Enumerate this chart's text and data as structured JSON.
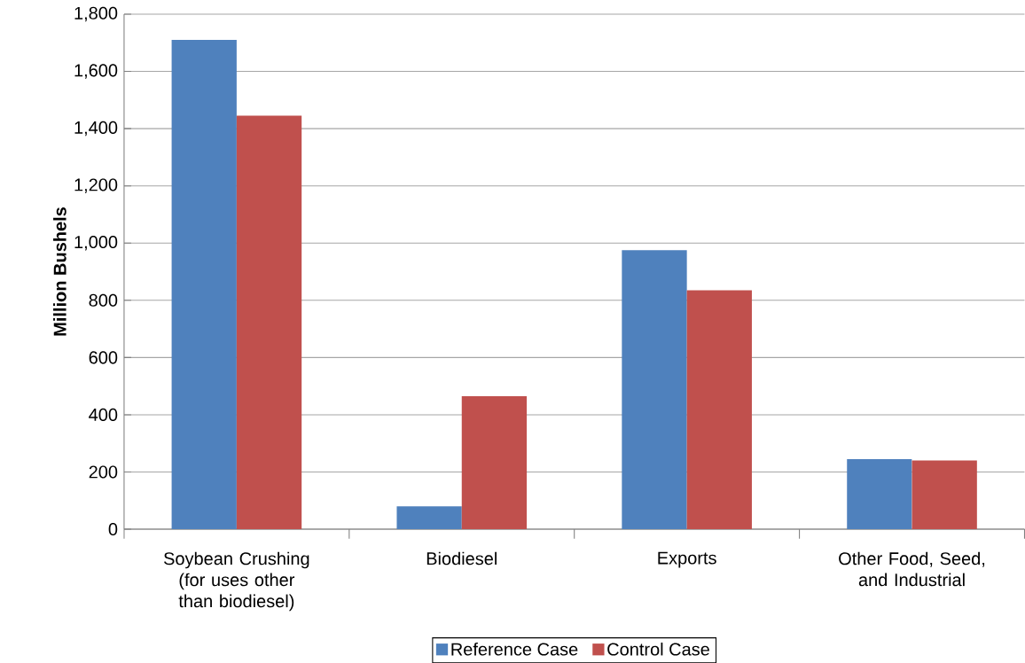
{
  "chart_data": {
    "type": "bar",
    "ylabel": "Million Bushels",
    "categories": [
      "Soybean Crushing (for uses other than biodiesel)",
      "Biodiesel",
      "Exports",
      "Other Food, Seed, and Industrial"
    ],
    "series": [
      {
        "name": "Reference Case",
        "color": "#4f81bd",
        "values": [
          1710,
          80,
          975,
          245
        ]
      },
      {
        "name": "Control Case",
        "color": "#c0504d",
        "values": [
          1445,
          465,
          835,
          240
        ]
      }
    ],
    "ylim": [
      0,
      1800
    ],
    "yticks": [
      0,
      200,
      400,
      600,
      800,
      {
        "value": 1000,
        "label": "1,000"
      },
      {
        "value": 1200,
        "label": "1,200"
      },
      {
        "value": 1400,
        "label": "1,400"
      },
      {
        "value": 1600,
        "label": "1,600"
      },
      {
        "value": 1800,
        "label": "1,800"
      }
    ],
    "grid": "y",
    "legend": "bottom"
  }
}
